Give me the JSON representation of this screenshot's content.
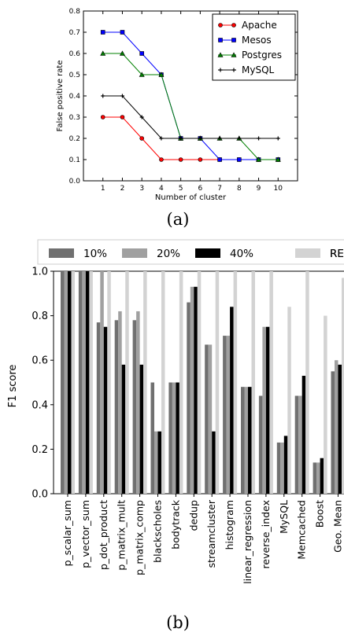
{
  "chart_data": [
    {
      "type": "line",
      "caption": "(a)",
      "xlabel": "Number of cluster",
      "ylabel": "False positive rate",
      "x": [
        1,
        2,
        3,
        4,
        5,
        6,
        7,
        8,
        9,
        10
      ],
      "xticks": [
        "1",
        "2",
        "3",
        "4",
        "5",
        "6",
        "7",
        "8",
        "9",
        "10"
      ],
      "xlim": [
        0,
        11
      ],
      "ylim": [
        0.0,
        0.8
      ],
      "yticks": [
        "0.0",
        "0.1",
        "0.2",
        "0.3",
        "0.4",
        "0.5",
        "0.6",
        "0.7",
        "0.8"
      ],
      "grid": false,
      "legend_position": "top-right",
      "series": [
        {
          "name": "Apache",
          "color": "#ff0000",
          "marker": "circle",
          "values": [
            0.3,
            0.3,
            0.2,
            0.1,
            0.1,
            0.1,
            0.1,
            0.1,
            0.1,
            0.1
          ]
        },
        {
          "name": "Mesos",
          "color": "#0000ff",
          "marker": "square",
          "values": [
            0.7,
            0.7,
            0.6,
            0.5,
            0.2,
            0.2,
            0.1,
            0.1,
            0.1,
            0.1
          ]
        },
        {
          "name": "Postgres",
          "color": "#008000",
          "marker": "triangle",
          "values": [
            0.6,
            0.6,
            0.5,
            0.5,
            0.2,
            0.2,
            0.2,
            0.2,
            0.1,
            0.1
          ]
        },
        {
          "name": "MySQL",
          "color": "#000000",
          "marker": "plus",
          "values": [
            0.4,
            0.4,
            0.3,
            0.2,
            0.2,
            0.2,
            0.2,
            0.2,
            0.2,
            0.2
          ]
        }
      ]
    },
    {
      "type": "bar",
      "caption": "(b)",
      "xlabel": "",
      "ylabel": "F1 score",
      "ylim": [
        0.0,
        1.0
      ],
      "yticks": [
        "0.0",
        "0.2",
        "0.4",
        "0.6",
        "0.8",
        "1.0"
      ],
      "grid": false,
      "legend_position": "top, above plot",
      "categories": [
        "p_scalar_sum",
        "p_vector_sum",
        "p_dot_product",
        "p_matrix_mult",
        "p_matrix_comp",
        "blackscholes",
        "bodytrack",
        "dedup",
        "streamcluster",
        "histogram",
        "linear_regression",
        "reverse_index",
        "MySQL",
        "Memcached",
        "Boost",
        "Geo. Mean"
      ],
      "series": [
        {
          "name": "10%",
          "color": "#707070",
          "values": [
            1.0,
            1.0,
            0.77,
            0.78,
            0.78,
            0.5,
            0.5,
            0.86,
            0.67,
            0.71,
            0.48,
            0.44,
            0.23,
            0.44,
            0.14,
            0.55
          ]
        },
        {
          "name": "20%",
          "color": "#a0a0a0",
          "values": [
            1.0,
            1.0,
            1.0,
            0.82,
            0.82,
            0.28,
            0.5,
            0.93,
            0.67,
            0.71,
            0.48,
            0.75,
            0.23,
            0.44,
            0.14,
            0.6
          ]
        },
        {
          "name": "40%",
          "color": "#000000",
          "values": [
            1.0,
            1.0,
            0.75,
            0.58,
            0.58,
            0.28,
            0.5,
            0.93,
            0.28,
            0.84,
            0.48,
            0.75,
            0.26,
            0.53,
            0.16,
            0.58
          ]
        },
        {
          "name": "RE",
          "color": "#d3d3d3",
          "values": [
            1.0,
            1.0,
            1.0,
            1.0,
            1.0,
            1.0,
            1.0,
            1.0,
            1.0,
            1.0,
            1.0,
            1.0,
            0.84,
            1.0,
            0.8,
            0.97
          ]
        }
      ]
    }
  ]
}
